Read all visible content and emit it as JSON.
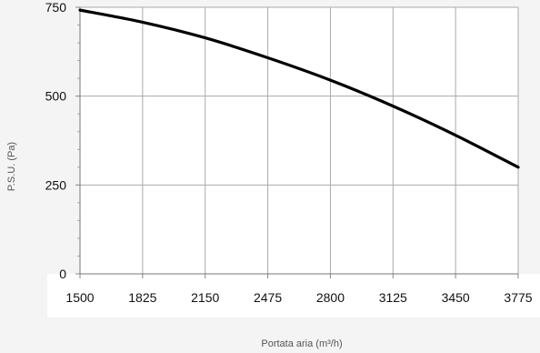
{
  "chart_data": {
    "type": "line",
    "title": "",
    "xlabel": "Portata aria (m³/h)",
    "ylabel": "P.S.U. (Pa)",
    "xlim": [
      1500,
      3775
    ],
    "ylim": [
      0,
      750
    ],
    "x_ticks": [
      "1500",
      "1825",
      "2150",
      "2475",
      "2800",
      "3125",
      "3450",
      "3775"
    ],
    "y_ticks": [
      "0",
      "250",
      "500",
      "750"
    ],
    "grid": true,
    "legend": "none",
    "colors": {
      "line": "#000000",
      "grid": "#aaaaaa",
      "background": "#f4f4f4",
      "plot_background": "#ffffff"
    },
    "series": [
      {
        "x": [
          1500,
          1825,
          2150,
          2475,
          2800,
          3125,
          3450,
          3775
        ],
        "y": [
          742,
          708,
          664,
          608,
          545,
          472,
          390,
          300
        ]
      }
    ]
  }
}
